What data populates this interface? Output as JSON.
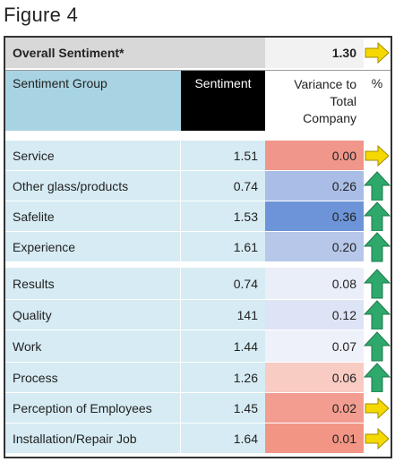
{
  "figure_title": "Figure 4",
  "overall": {
    "label": "Overall Sentiment*",
    "value": "1.30",
    "arrow": "right-arrow-icon",
    "arrow_color": "#f5d800"
  },
  "header": {
    "group": "Sentiment Group",
    "sentiment": "Sentiment",
    "variance": "Variance to\nTotal\nCompany",
    "percent": "%"
  },
  "colors": {
    "up_arrow": "#2ea86b",
    "right_arrow": "#f5d800",
    "header_blue": "#a8d3e2",
    "row_blue": "#d6ebf3"
  },
  "rows": [
    {
      "group": "Service",
      "sentiment": "1.51",
      "variance": "0.00",
      "variance_color": "#f0968a",
      "arrow": "right-arrow-icon"
    },
    {
      "group": "Other glass/products",
      "sentiment": "0.74",
      "variance": "0.26",
      "variance_color": "#a9bde6",
      "arrow": "up-arrow-icon"
    },
    {
      "group": "Safelite",
      "sentiment": "1.53",
      "variance": "0.36",
      "variance_color": "#6d94d8",
      "arrow": "up-arrow-icon"
    },
    {
      "group": "Experience",
      "sentiment": "1.61",
      "variance": "0.20",
      "variance_color": "#b7c7ea",
      "arrow": "up-arrow-icon"
    },
    {
      "group": "Results",
      "sentiment": "0.74",
      "variance": "0.08",
      "variance_color": "#eaeef8",
      "arrow": "up-arrow-icon"
    },
    {
      "group": "Quality",
      "sentiment": "141",
      "variance": "0.12",
      "variance_color": "#dde4f5",
      "arrow": "up-arrow-icon"
    },
    {
      "group": "Work",
      "sentiment": "1.44",
      "variance": "0.07",
      "variance_color": "#eef1f9",
      "arrow": "up-arrow-icon"
    },
    {
      "group": "Process",
      "sentiment": "1.26",
      "variance": "0.06",
      "variance_color": "#f8cbc3",
      "arrow": "up-arrow-icon"
    },
    {
      "group": "Perception of Employees",
      "sentiment": "1.45",
      "variance": "0.02",
      "variance_color": "#f29d90",
      "arrow": "right-arrow-icon"
    },
    {
      "group": "Installation/Repair Job",
      "sentiment": "1.64",
      "variance": "0.01",
      "variance_color": "#f29585",
      "arrow": "right-arrow-icon"
    }
  ]
}
